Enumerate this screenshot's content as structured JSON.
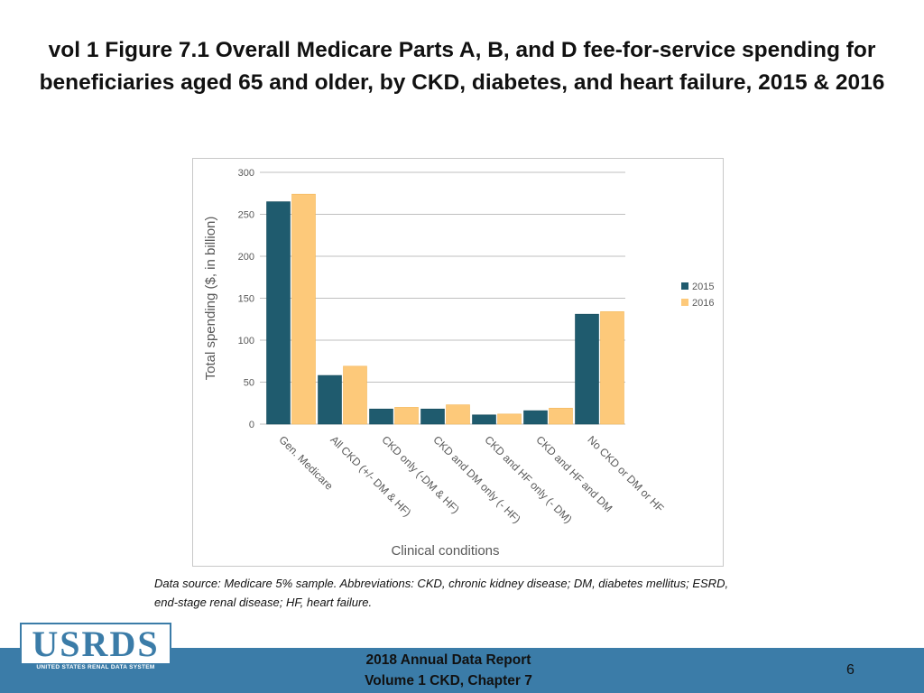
{
  "slide": {
    "title": "vol 1 Figure 7.1 Overall Medicare Parts A, B, and D fee-for-service spending for beneficiaries aged 65 and older, by CKD, diabetes, and heart failure, 2015 & 2016",
    "caption": "Data source: Medicare 5% sample. Abbreviations: CKD, chronic kidney disease; DM, diabetes mellitus; ESRD, end-stage renal disease; HF, heart failure.",
    "footer_line1": "2018 Annual Data Report",
    "footer_line2": "Volume 1 CKD, Chapter 7",
    "page_number": "6",
    "logo_text": "USRDS",
    "logo_subtext": "UNITED STATES RENAL DATA SYSTEM"
  },
  "colors": {
    "series_2015": "#1f5b6e",
    "series_2016": "#fdc97a",
    "footer": "#3b7ca8",
    "gridline": "#bfbfbf",
    "axis_text": "#595959"
  },
  "chart_data": {
    "type": "bar",
    "title": "",
    "xlabel": "Clinical conditions",
    "ylabel": "Total spending ($, in billion)",
    "ylim": [
      0,
      300
    ],
    "yticks": [
      0,
      50,
      100,
      150,
      200,
      250,
      300
    ],
    "grid": true,
    "legend_position": "right",
    "categories": [
      "Gen. Medicare",
      "All CKD (+/- DM & HF)",
      "CKD only (-DM & HF)",
      "CKD and DM only (- HF)",
      "CKD and HF only (- DM)",
      "CKD and HF and DM",
      "No CKD or DM or HF"
    ],
    "series": [
      {
        "name": "2015",
        "values": [
          265,
          58,
          18,
          18,
          11,
          16,
          131
        ]
      },
      {
        "name": "2016",
        "values": [
          274,
          69,
          20,
          23,
          12,
          19,
          134
        ]
      }
    ]
  }
}
